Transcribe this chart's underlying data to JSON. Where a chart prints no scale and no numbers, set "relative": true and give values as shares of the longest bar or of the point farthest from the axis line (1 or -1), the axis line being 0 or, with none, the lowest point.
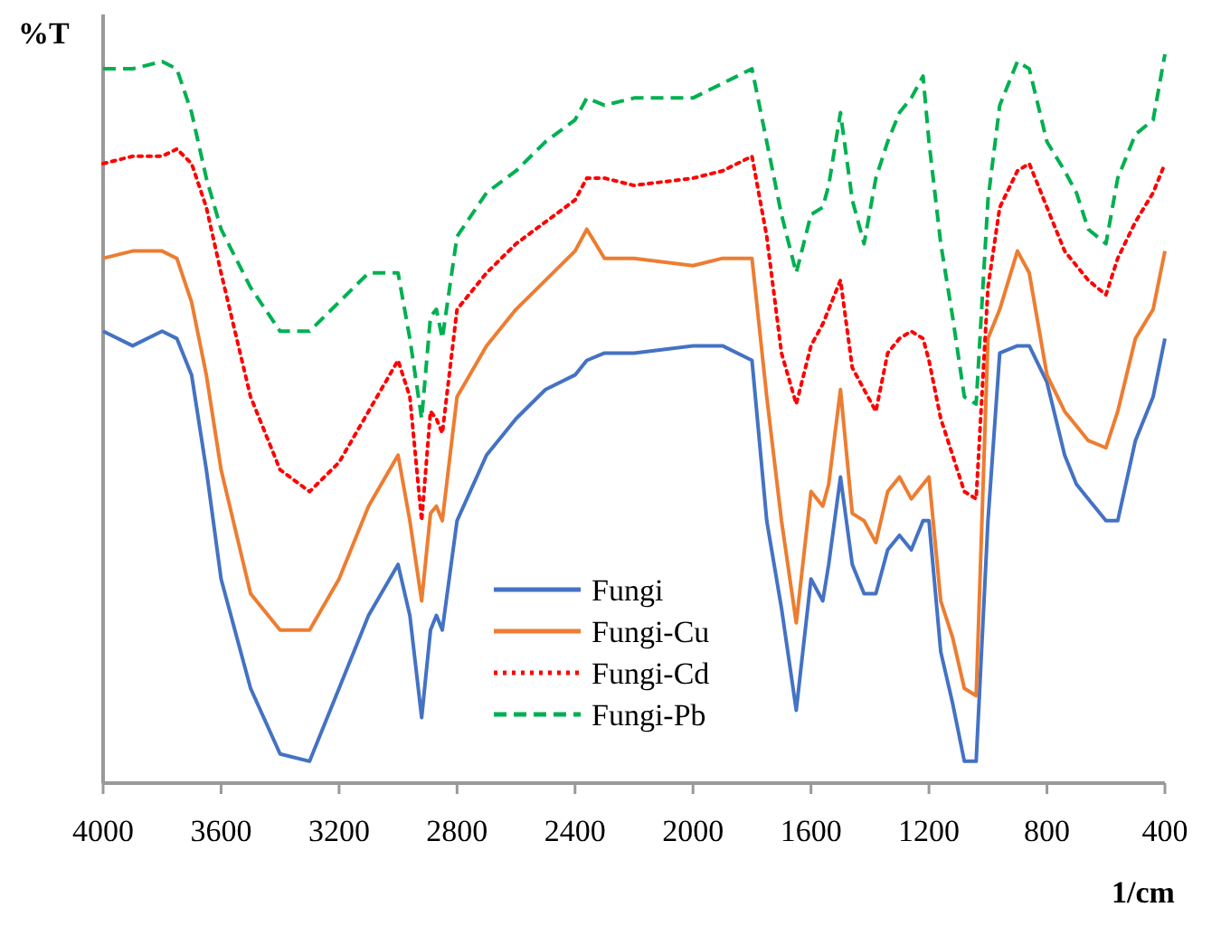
{
  "chart_data": {
    "type": "line",
    "relative": true,
    "ylabel": "%T",
    "xlabel": "1/cm",
    "x": [
      4000,
      3900,
      3800,
      3750,
      3700,
      3650,
      3600,
      3500,
      3400,
      3300,
      3200,
      3100,
      3000,
      2960,
      2920,
      2890,
      2870,
      2850,
      2800,
      2700,
      2600,
      2500,
      2400,
      2360,
      2300,
      2200,
      2000,
      1900,
      1800,
      1750,
      1700,
      1650,
      1600,
      1560,
      1540,
      1500,
      1460,
      1420,
      1380,
      1340,
      1300,
      1260,
      1220,
      1200,
      1160,
      1120,
      1080,
      1040,
      1000,
      960,
      900,
      860,
      800,
      740,
      700,
      660,
      600,
      560,
      500,
      440,
      400
    ],
    "xlim": [
      4000,
      400
    ],
    "xticks": [
      4000,
      3600,
      3200,
      2800,
      2400,
      2000,
      1600,
      1200,
      800,
      400
    ],
    "legend": "bottom",
    "grid": false,
    "series": [
      {
        "name": "Fungi",
        "color": "#4472c4",
        "line_style": "solid",
        "values": [
          0.62,
          0.6,
          0.62,
          0.61,
          0.56,
          0.43,
          0.28,
          0.13,
          0.04,
          0.03,
          0.13,
          0.23,
          0.3,
          0.23,
          0.09,
          0.21,
          0.23,
          0.21,
          0.36,
          0.45,
          0.5,
          0.54,
          0.56,
          0.58,
          0.59,
          0.59,
          0.6,
          0.6,
          0.58,
          0.36,
          0.24,
          0.1,
          0.28,
          0.25,
          0.3,
          0.42,
          0.3,
          0.26,
          0.26,
          0.32,
          0.34,
          0.32,
          0.36,
          0.36,
          0.18,
          0.11,
          0.03,
          0.03,
          0.36,
          0.59,
          0.6,
          0.6,
          0.55,
          0.45,
          0.41,
          0.39,
          0.36,
          0.36,
          0.47,
          0.53,
          0.61
        ]
      },
      {
        "name": "Fungi-Cu",
        "color": "#ed7d31",
        "line_style": "solid",
        "values": [
          0.72,
          0.73,
          0.73,
          0.72,
          0.66,
          0.56,
          0.43,
          0.26,
          0.21,
          0.21,
          0.28,
          0.38,
          0.45,
          0.36,
          0.25,
          0.37,
          0.38,
          0.36,
          0.53,
          0.6,
          0.65,
          0.69,
          0.73,
          0.76,
          0.72,
          0.72,
          0.71,
          0.72,
          0.72,
          0.53,
          0.36,
          0.22,
          0.4,
          0.38,
          0.41,
          0.54,
          0.37,
          0.36,
          0.33,
          0.4,
          0.42,
          0.39,
          0.41,
          0.42,
          0.25,
          0.2,
          0.13,
          0.12,
          0.61,
          0.65,
          0.73,
          0.7,
          0.56,
          0.51,
          0.49,
          0.47,
          0.46,
          0.51,
          0.61,
          0.65,
          0.73
        ]
      },
      {
        "name": "Fungi-Cd",
        "color": "#ff0000",
        "line_style": "dotted",
        "values": [
          0.85,
          0.86,
          0.86,
          0.87,
          0.85,
          0.79,
          0.7,
          0.53,
          0.43,
          0.4,
          0.44,
          0.51,
          0.58,
          0.53,
          0.36,
          0.51,
          0.5,
          0.48,
          0.65,
          0.7,
          0.74,
          0.77,
          0.8,
          0.83,
          0.83,
          0.82,
          0.83,
          0.84,
          0.86,
          0.75,
          0.59,
          0.52,
          0.6,
          0.63,
          0.65,
          0.69,
          0.57,
          0.54,
          0.51,
          0.59,
          0.61,
          0.62,
          0.61,
          0.58,
          0.5,
          0.45,
          0.4,
          0.39,
          0.68,
          0.79,
          0.84,
          0.85,
          0.79,
          0.73,
          0.71,
          0.69,
          0.67,
          0.72,
          0.77,
          0.81,
          0.85
        ]
      },
      {
        "name": "Fungi-Pb",
        "color": "#00b050",
        "line_style": "dashed",
        "values": [
          0.98,
          0.98,
          0.99,
          0.98,
          0.92,
          0.83,
          0.76,
          0.68,
          0.62,
          0.62,
          0.66,
          0.7,
          0.7,
          0.61,
          0.5,
          0.64,
          0.65,
          0.61,
          0.75,
          0.81,
          0.84,
          0.88,
          0.91,
          0.94,
          0.93,
          0.94,
          0.94,
          0.96,
          0.98,
          0.88,
          0.78,
          0.7,
          0.78,
          0.79,
          0.82,
          0.92,
          0.8,
          0.74,
          0.83,
          0.88,
          0.92,
          0.94,
          0.97,
          0.88,
          0.74,
          0.64,
          0.53,
          0.52,
          0.8,
          0.93,
          0.99,
          0.98,
          0.88,
          0.84,
          0.81,
          0.76,
          0.74,
          0.83,
          0.89,
          0.91,
          1
        ]
      }
    ]
  }
}
